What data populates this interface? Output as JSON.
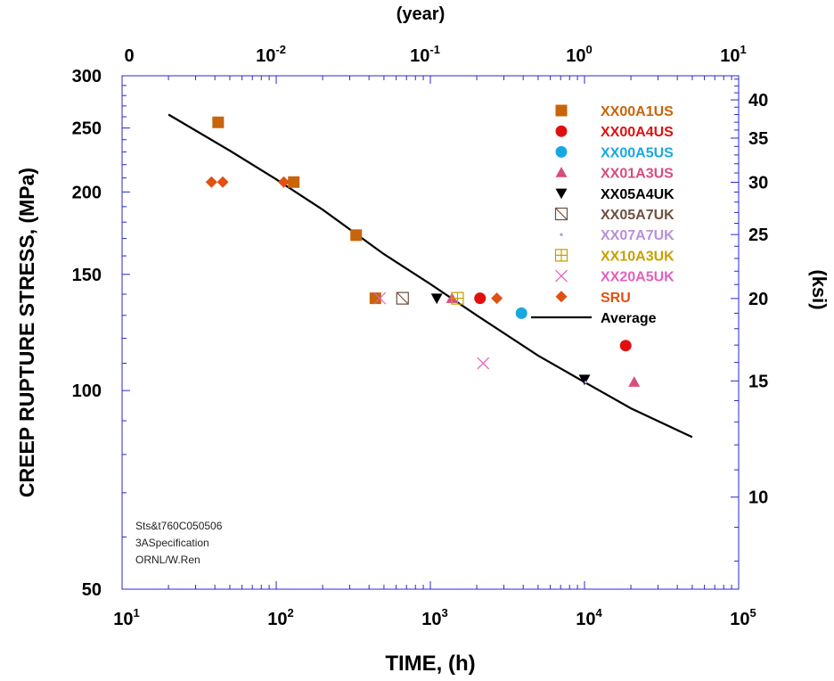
{
  "chart_data": {
    "type": "scatter",
    "title": "",
    "xlabel": "TIME, (h)",
    "ylabel": "CREEP RUPTURE STRESS, (MPa)",
    "x2label": "(year)",
    "y2label": "(ksi)",
    "xscale": "log",
    "yscale": "log",
    "xlim": [
      10,
      100000
    ],
    "ylim": [
      50,
      300
    ],
    "x_ticks": [
      {
        "base": "10",
        "exp": "1"
      },
      {
        "base": "10",
        "exp": "2"
      },
      {
        "base": "10",
        "exp": "3"
      },
      {
        "base": "10",
        "exp": "4"
      },
      {
        "base": "10",
        "exp": "5"
      }
    ],
    "y_ticks": [
      "50",
      "100",
      "150",
      "200",
      "250",
      "300"
    ],
    "x2_ticks": [
      {
        "base": "0",
        "exp": ""
      },
      {
        "base": "10",
        "exp": "-2"
      },
      {
        "base": "10",
        "exp": "-1"
      },
      {
        "base": "10",
        "exp": "0"
      },
      {
        "base": "10",
        "exp": "1"
      }
    ],
    "y2_ticks": [
      "10",
      "15",
      "20",
      "25",
      "30",
      "35",
      "40"
    ],
    "legend_position": "top-right",
    "series": [
      {
        "name": "XX00A1US",
        "marker": "square",
        "color": "#C8640A",
        "points": [
          [
            42,
            255
          ],
          [
            130,
            207
          ],
          [
            330,
            172
          ],
          [
            440,
            138
          ]
        ]
      },
      {
        "name": "XX00A4US",
        "marker": "circle",
        "color": "#E01010",
        "points": [
          [
            2100,
            138
          ],
          [
            18500,
            117
          ]
        ]
      },
      {
        "name": "XX00A5US",
        "marker": "circle",
        "color": "#18A8E0",
        "points": [
          [
            3900,
            131
          ]
        ]
      },
      {
        "name": "XX01A3US",
        "marker": "triangle-up",
        "color": "#D84C80",
        "points": [
          [
            1380,
            138
          ],
          [
            21000,
            103
          ]
        ]
      },
      {
        "name": "XX05A4UK",
        "marker": "triangle-down",
        "color": "#000000",
        "points": [
          [
            1100,
            138
          ],
          [
            10000,
            104
          ]
        ]
      },
      {
        "name": "XX05A7UK",
        "marker": "square-slash",
        "color": "#6E5040",
        "points": [
          [
            660,
            138
          ]
        ]
      },
      {
        "name": "XX07A7UK",
        "marker": "dot",
        "color": "#B890D8",
        "points": [
          [
            10200,
            103
          ]
        ]
      },
      {
        "name": "XX10A3UK",
        "marker": "square-plus",
        "color": "#C8A000",
        "points": [
          [
            1500,
            138
          ]
        ]
      },
      {
        "name": "XX20A5UK",
        "marker": "x",
        "color": "#E060C0",
        "points": [
          [
            470,
            138
          ],
          [
            2200,
            110
          ]
        ]
      },
      {
        "name": "SRU",
        "marker": "diamond",
        "color": "#E05010",
        "points": [
          [
            38,
            207
          ],
          [
            45,
            207
          ],
          [
            112,
            207
          ],
          [
            2700,
            138
          ]
        ]
      },
      {
        "name": "Average",
        "marker": "line",
        "color": "#000000",
        "points": [
          [
            20,
            262
          ],
          [
            50,
            231
          ],
          [
            100,
            209
          ],
          [
            200,
            188
          ],
          [
            500,
            161
          ],
          [
            1000,
            145
          ],
          [
            2000,
            130
          ],
          [
            5000,
            113
          ],
          [
            10000,
            103
          ],
          [
            20000,
            94
          ],
          [
            50000,
            85
          ]
        ]
      }
    ],
    "annotations": [
      "Sts&t760C050506",
      "3ASpecification",
      "ORNL/W.Ren"
    ],
    "axis_color": "#2828C8"
  }
}
